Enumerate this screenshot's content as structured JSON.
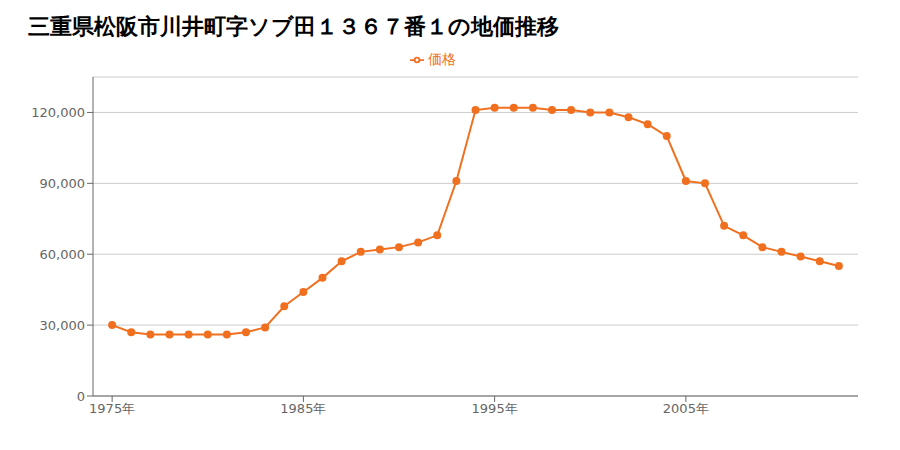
{
  "chart_data": {
    "type": "line",
    "title": "三重県松阪市川井町字ソブ田１３６７番１の地価推移",
    "x": [
      1975,
      1976,
      1977,
      1978,
      1979,
      1980,
      1981,
      1982,
      1983,
      1984,
      1985,
      1986,
      1987,
      1988,
      1989,
      1990,
      1991,
      1992,
      1993,
      1994,
      1995,
      1996,
      1997,
      1998,
      1999,
      2000,
      2001,
      2002,
      2003,
      2004,
      2005,
      2006,
      2007,
      2008,
      2009,
      2010,
      2011,
      2012,
      2013
    ],
    "series": [
      {
        "name": "価格",
        "color": "#f07020",
        "marker": "circle",
        "line_style": "solid",
        "values": [
          30000,
          27000,
          26000,
          26000,
          26000,
          26000,
          26000,
          27000,
          29000,
          38000,
          44000,
          50000,
          57000,
          61000,
          62000,
          63000,
          65000,
          68000,
          91000,
          121000,
          122000,
          122000,
          122000,
          121000,
          121000,
          120000,
          120000,
          118000,
          115000,
          110000,
          91000,
          90000,
          72000,
          68000,
          63000,
          61000,
          59000,
          57000,
          55000
        ]
      }
    ],
    "xlim": [
      1974,
      2014
    ],
    "xticks": [
      {
        "value": 1975,
        "label": "1975年"
      },
      {
        "value": 1985,
        "label": "1985年"
      },
      {
        "value": 1995,
        "label": "1995年"
      },
      {
        "value": 2005,
        "label": "2005年"
      }
    ],
    "ylim": [
      0,
      135000
    ],
    "yticks": [
      0,
      {
        "value": 30000,
        "label": "30,000"
      },
      {
        "value": 60000,
        "label": "60,000"
      },
      {
        "value": 90000,
        "label": "90,000"
      },
      {
        "value": 120000,
        "label": "120,000"
      }
    ],
    "grid": true,
    "legend": "top"
  }
}
